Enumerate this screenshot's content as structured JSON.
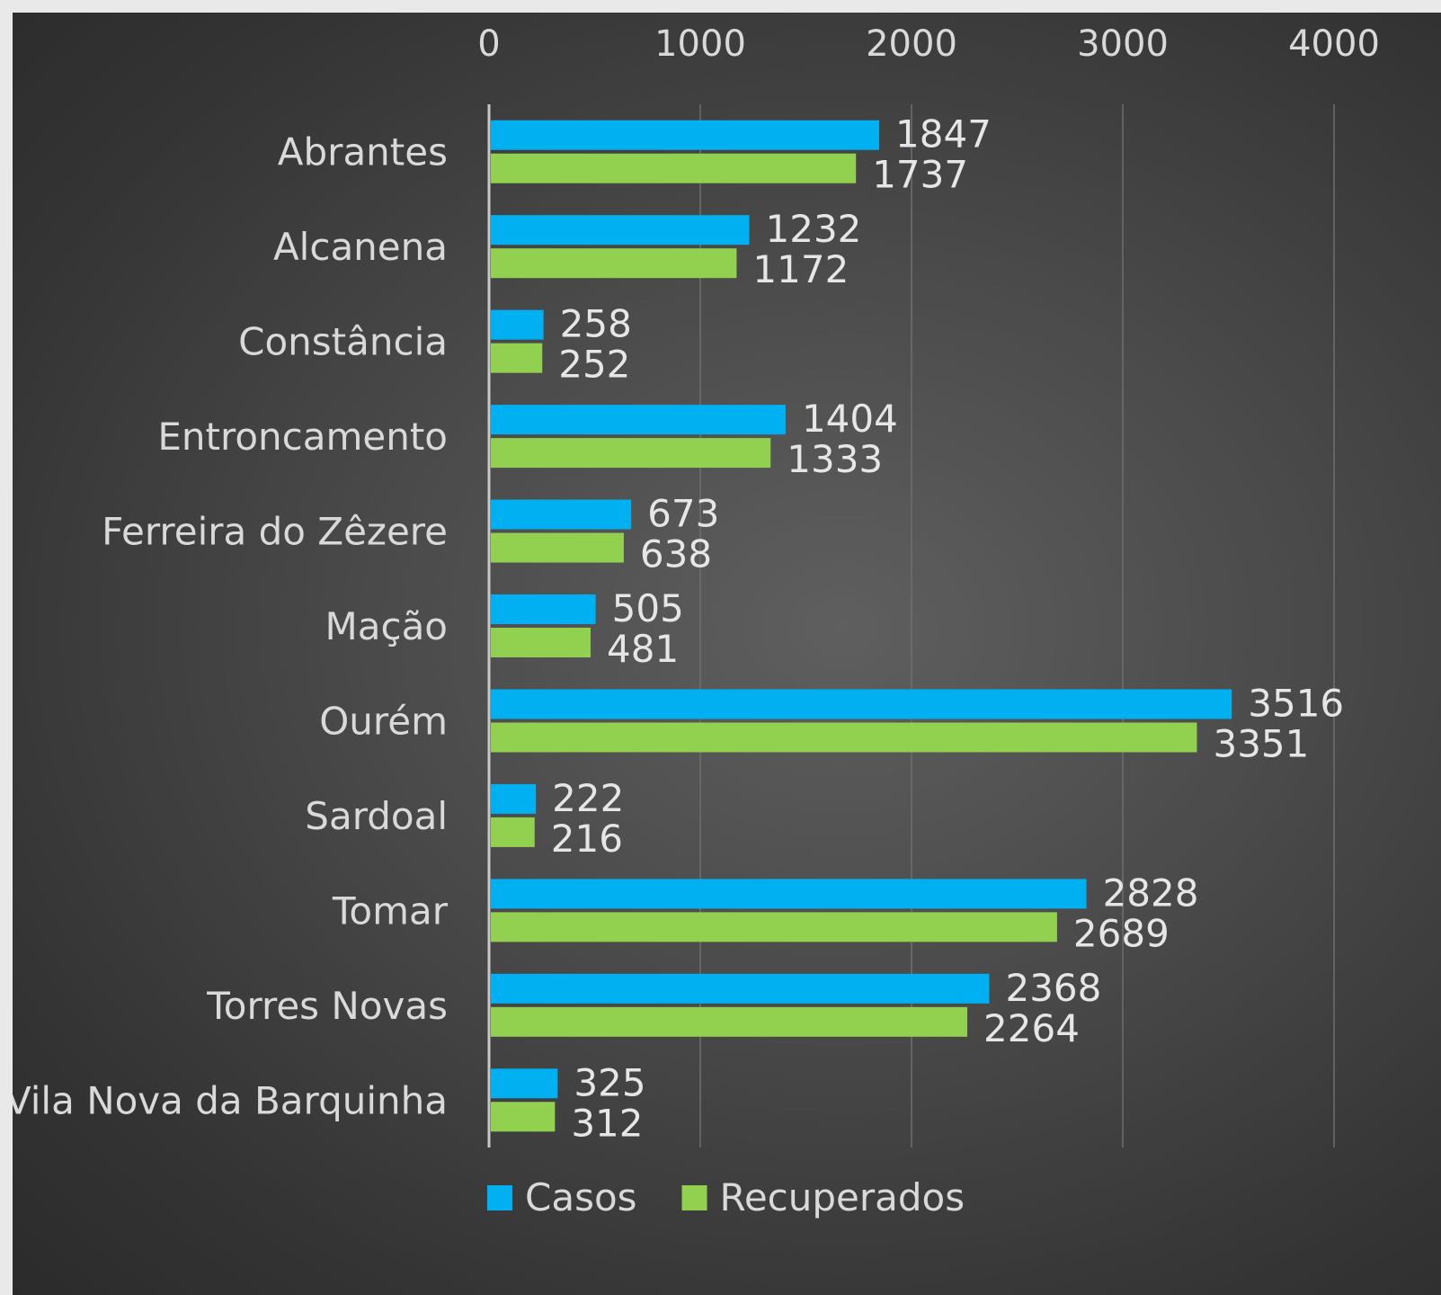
{
  "chart_data": {
    "type": "bar",
    "orientation": "horizontal",
    "categories": [
      "Abrantes",
      "Alcanena",
      "Constância",
      "Entroncamento",
      "Ferreira do Zêzere",
      "Mação",
      "Ourém",
      "Sardoal",
      "Tomar",
      "Torres Novas",
      "Vila Nova da Barquinha"
    ],
    "series": [
      {
        "name": "Casos",
        "color": "#00b0f0",
        "values": [
          1847,
          1232,
          258,
          1404,
          673,
          505,
          3516,
          222,
          2828,
          2368,
          325
        ]
      },
      {
        "name": "Recuperados",
        "color": "#92d050",
        "values": [
          1737,
          1172,
          252,
          1333,
          638,
          481,
          3351,
          216,
          2689,
          2264,
          312
        ]
      }
    ],
    "xlim": [
      0,
      4000
    ],
    "xticks": [
      "0",
      "1000",
      "2000",
      "3000",
      "4000"
    ],
    "x_axis_position": "top",
    "grid": true,
    "legend": "bottom",
    "data_labels": true,
    "title": "",
    "xlabel": "",
    "ylabel": ""
  }
}
